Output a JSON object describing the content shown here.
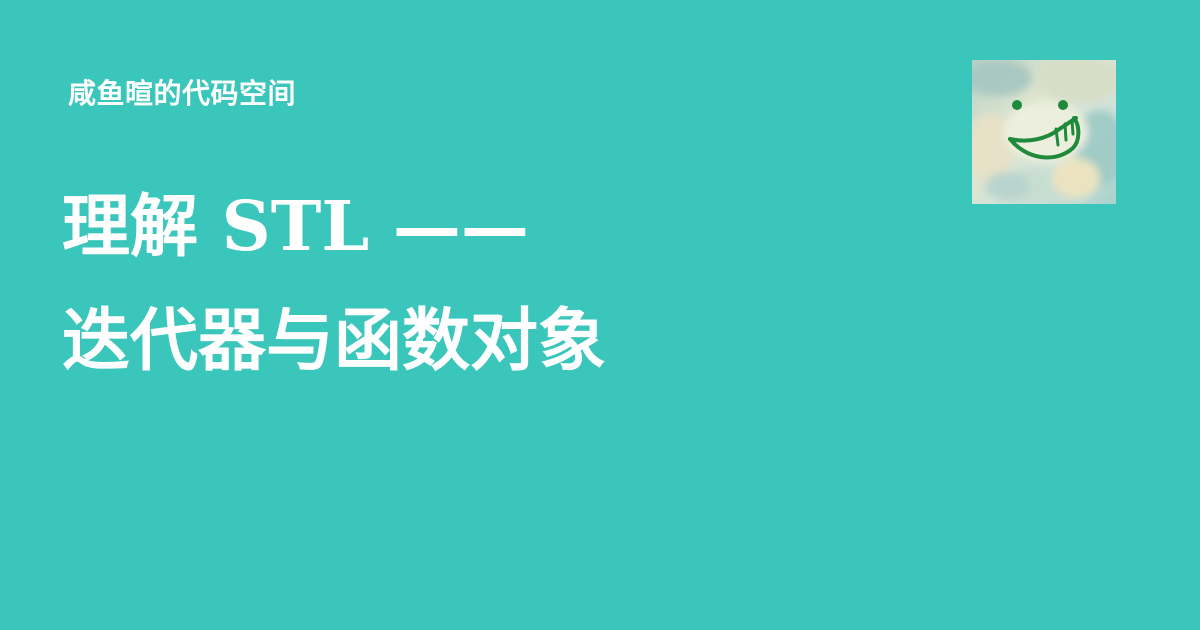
{
  "site": {
    "name": "咸鱼暄的代码空间"
  },
  "post": {
    "title_line_1": "理解 STL ——",
    "title_line_2": "迭代器与函数对象"
  },
  "avatar": {
    "icon": "smiley-face-painting-icon"
  },
  "colors": {
    "background": "#3bc6bb",
    "text": "#ffffff",
    "avatar_face_stroke": "#1f8a3a"
  }
}
